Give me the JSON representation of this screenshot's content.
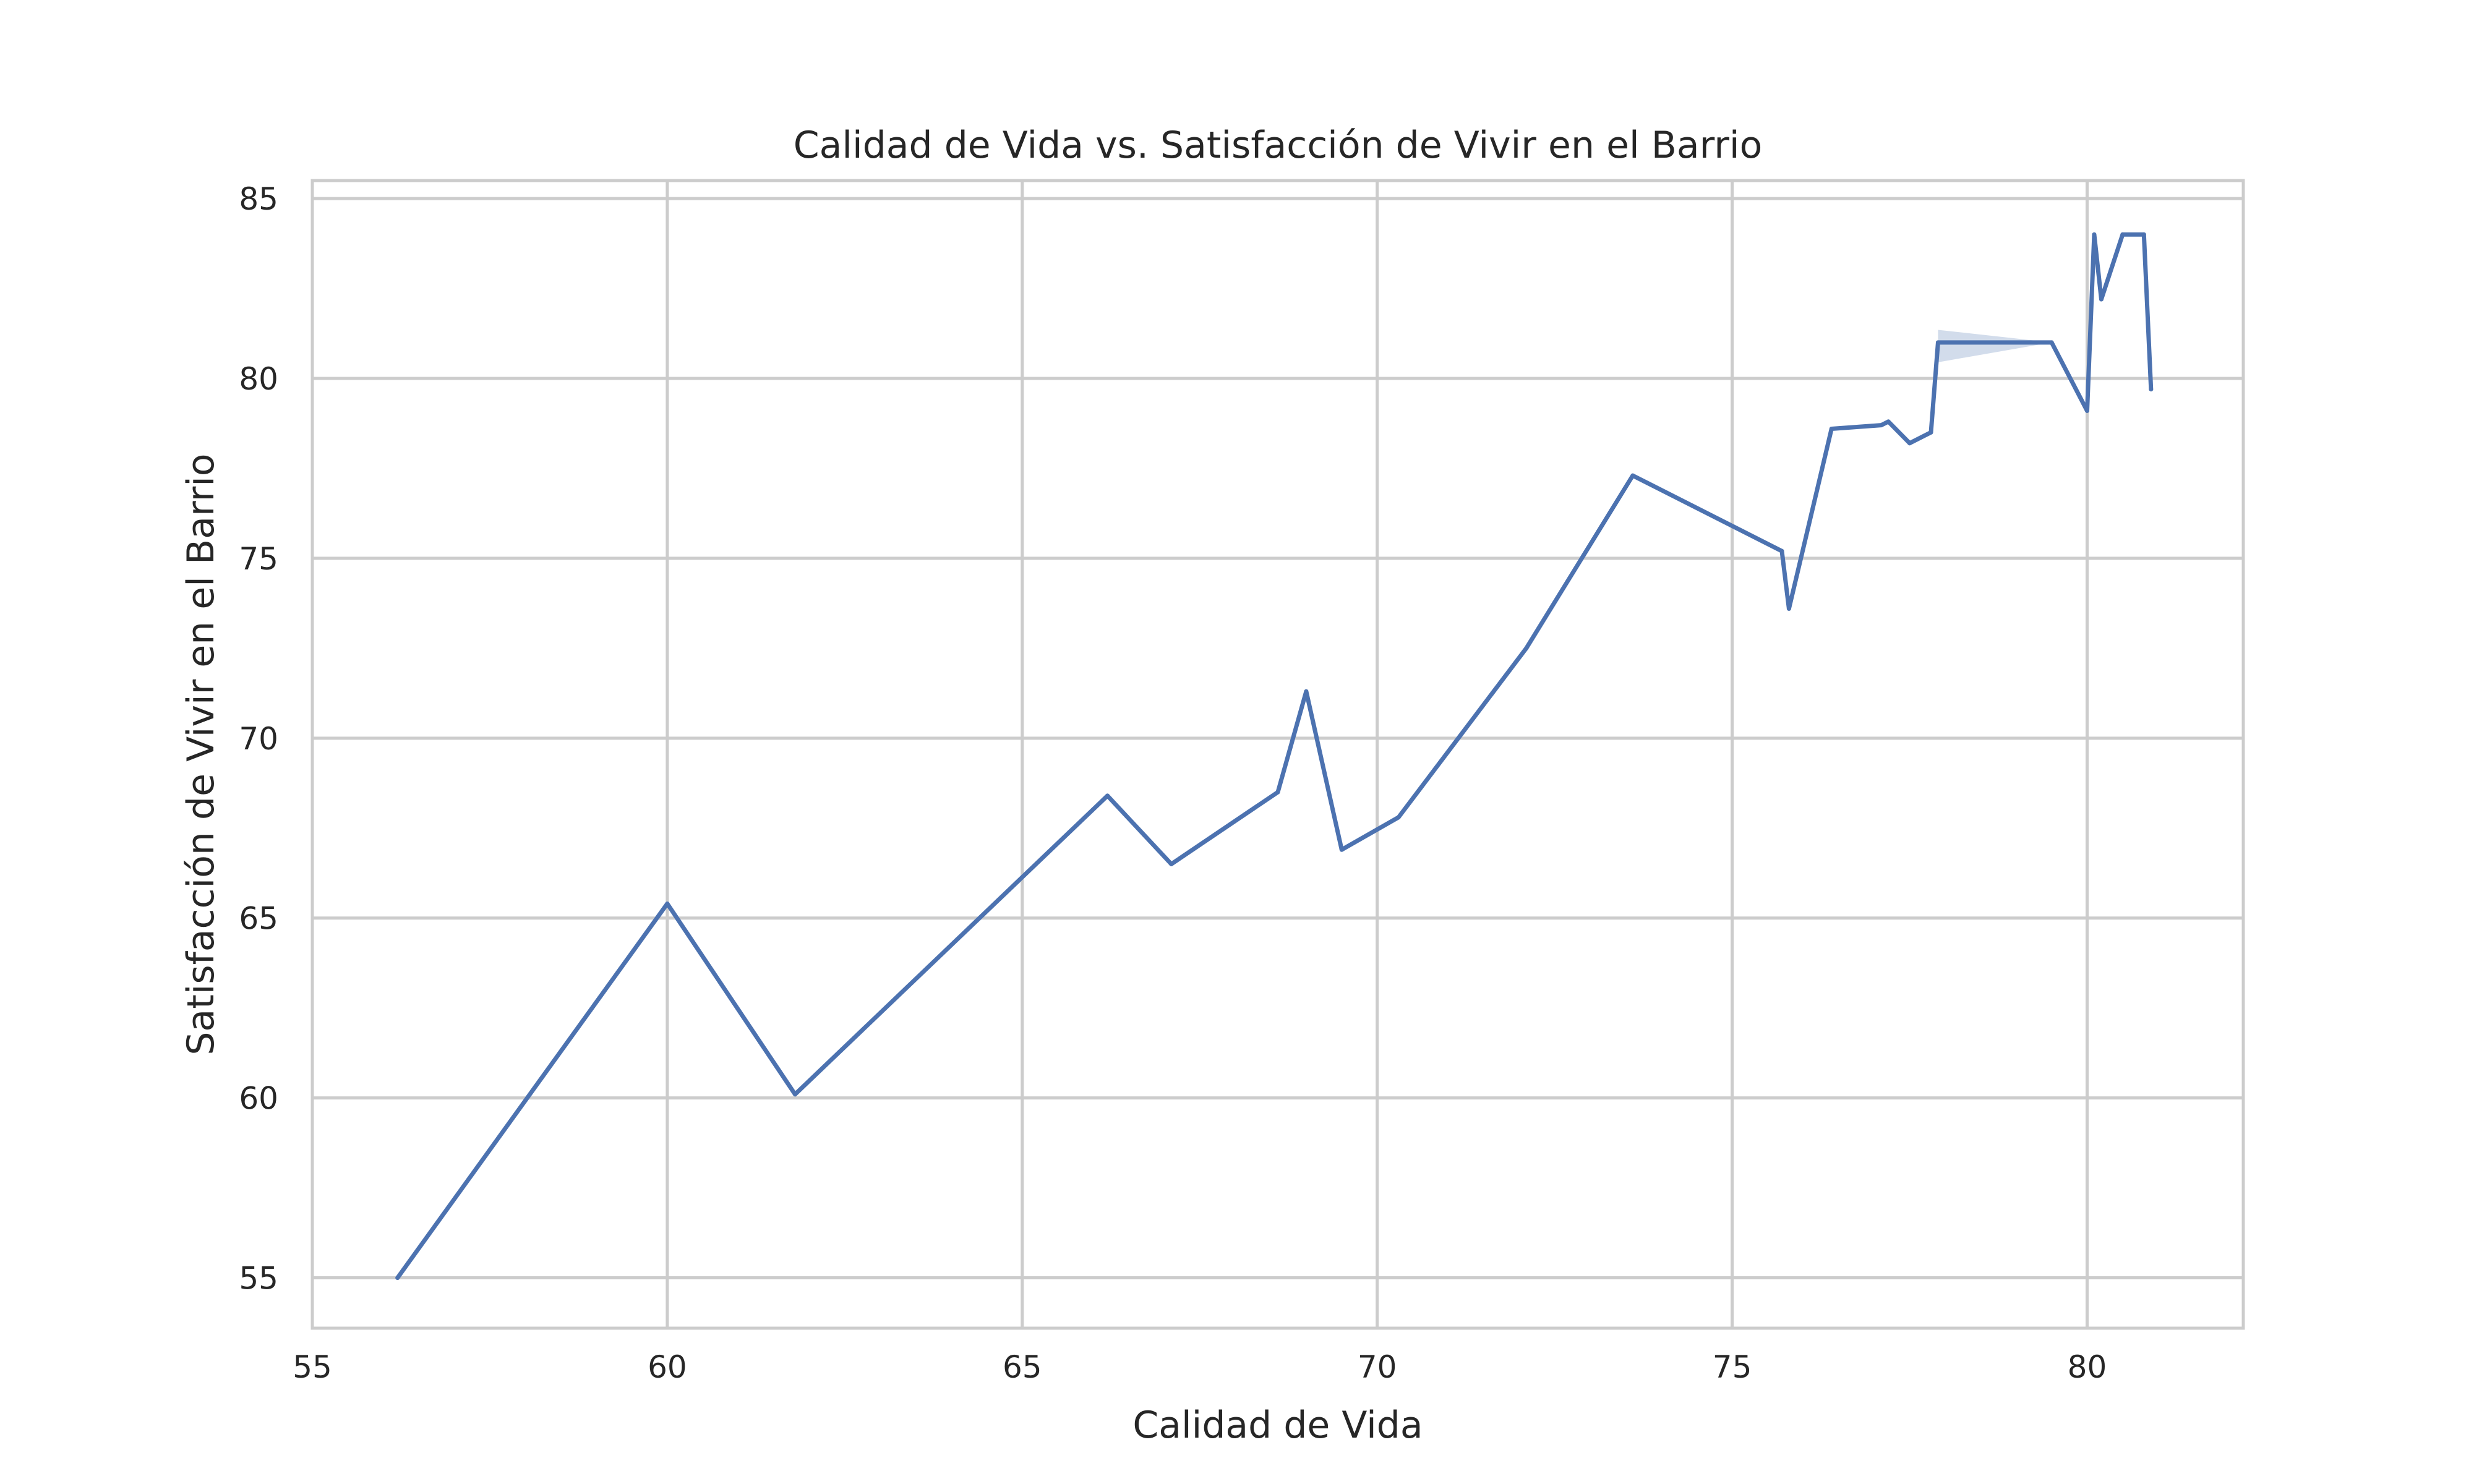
{
  "chart_data": {
    "type": "line",
    "title": "Calidad de Vida vs. Satisfacción de Vivir en el Barrio",
    "xlabel": "Calidad de Vida",
    "ylabel": "Satisfacción de Vivir en el Barrio",
    "xlim": [
      55,
      82.2
    ],
    "ylim": [
      53.6,
      85.5
    ],
    "xticks": [
      55,
      60,
      65,
      70,
      75,
      80
    ],
    "yticks": [
      55,
      60,
      65,
      70,
      75,
      80,
      85
    ],
    "grid": true,
    "colors": {
      "line": "#4c72b0",
      "band": "#4c72b0"
    },
    "series": [
      {
        "x": [
          56.2,
          60.0,
          61.8,
          66.2,
          67.1,
          68.6,
          69.0,
          69.5,
          70.3,
          72.1,
          73.6,
          75.7,
          75.8,
          76.4,
          77.1,
          77.2,
          77.5,
          77.8,
          77.9,
          79.5,
          80.0,
          80.1,
          80.2,
          80.5,
          80.8,
          80.9
        ],
        "y": [
          55.0,
          65.4,
          60.1,
          68.4,
          66.5,
          68.5,
          71.3,
          66.9,
          67.8,
          72.5,
          77.3,
          75.2,
          73.6,
          78.6,
          78.7,
          78.8,
          78.2,
          78.5,
          81.0,
          81.0,
          79.1,
          84.0,
          82.2,
          84.0,
          84.0,
          79.7
        ]
      }
    ],
    "confidence_band": {
      "x": [
        77.9,
        79.5
      ],
      "upper": [
        81.35,
        81.0
      ],
      "lower": [
        80.45,
        81.0
      ]
    }
  }
}
